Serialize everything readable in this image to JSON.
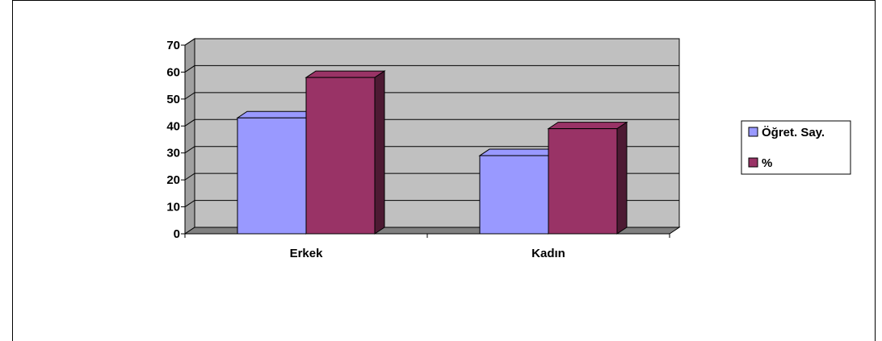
{
  "chart_data": {
    "type": "bar",
    "categories": [
      "Erkek",
      "Kadın"
    ],
    "series": [
      {
        "name": "Öğret. Say.",
        "values": [
          43,
          29
        ],
        "color": "#9999ff"
      },
      {
        "name": "%",
        "values": [
          58,
          39
        ],
        "color": "#993366"
      }
    ],
    "yticks": [
      "0",
      "10",
      "20",
      "30",
      "40",
      "50",
      "60",
      "70"
    ],
    "ylim": [
      0,
      70
    ],
    "grid": true,
    "legend_position": "right",
    "plot_background": "#c0c0c0",
    "floor_color": "#808080"
  }
}
